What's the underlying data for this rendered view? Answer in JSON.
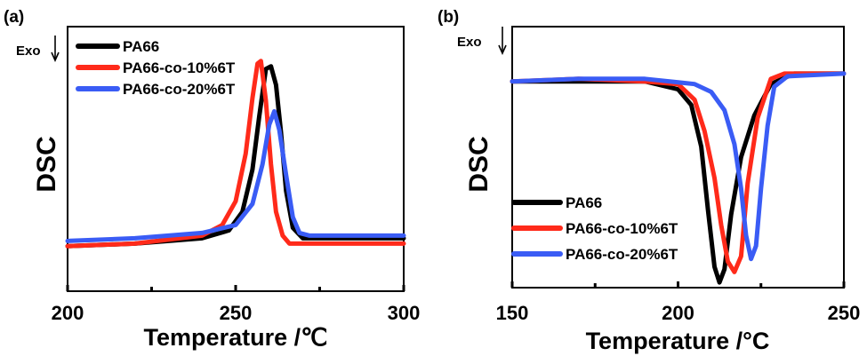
{
  "chart_data": [
    {
      "type": "line",
      "panel": "(a)",
      "xlabel": "Temperature /℃",
      "ylabel": "DSC",
      "annotation": "Exo",
      "xlim": [
        200,
        300
      ],
      "x_ticks": [
        200,
        250,
        300
      ],
      "x_minor_ticks": [
        225,
        275
      ],
      "ylim": [
        0,
        1
      ],
      "y_ticks_shown": false,
      "legend_position": "top-left",
      "series": [
        {
          "name": "PA66",
          "color": "#000000",
          "x": [
            200,
            220,
            240,
            248,
            252,
            255,
            257,
            259,
            260.5,
            262,
            263.5,
            265,
            267,
            270,
            275,
            300
          ],
          "y": [
            0.17,
            0.18,
            0.2,
            0.23,
            0.3,
            0.46,
            0.66,
            0.84,
            0.85,
            0.78,
            0.6,
            0.38,
            0.24,
            0.2,
            0.2,
            0.2
          ]
        },
        {
          "name": "PA66-co-10%6T",
          "color": "#ff2a1a",
          "x": [
            200,
            220,
            240,
            246,
            250,
            253,
            255,
            256.5,
            257.5,
            259,
            260.5,
            262,
            264,
            266,
            270,
            300
          ],
          "y": [
            0.17,
            0.18,
            0.21,
            0.25,
            0.34,
            0.52,
            0.73,
            0.86,
            0.87,
            0.72,
            0.48,
            0.3,
            0.21,
            0.18,
            0.18,
            0.18
          ]
        },
        {
          "name": "PA66-co-20%6T",
          "color": "#3a5cf5",
          "x": [
            200,
            220,
            240,
            250,
            255,
            258,
            260,
            261.5,
            263,
            265,
            267,
            269,
            272,
            280,
            300
          ],
          "y": [
            0.19,
            0.2,
            0.22,
            0.25,
            0.33,
            0.48,
            0.63,
            0.68,
            0.61,
            0.44,
            0.28,
            0.22,
            0.21,
            0.21,
            0.21
          ]
        }
      ]
    },
    {
      "type": "line",
      "panel": "(b)",
      "xlabel": "Temperature /°C",
      "ylabel": "DSC",
      "annotation": "Exo",
      "xlim": [
        150,
        250
      ],
      "x_ticks": [
        150,
        200,
        250
      ],
      "x_minor_ticks": [
        175,
        225
      ],
      "ylim": [
        0,
        1
      ],
      "y_ticks_shown": false,
      "legend_position": "bottom-left",
      "series": [
        {
          "name": "PA66",
          "color": "#000000",
          "x": [
            150,
            170,
            190,
            200,
            204,
            207,
            209,
            211,
            212.5,
            214,
            216,
            219,
            223,
            228,
            235,
            250
          ],
          "y": [
            0.79,
            0.79,
            0.79,
            0.76,
            0.7,
            0.54,
            0.3,
            0.08,
            0.02,
            0.07,
            0.28,
            0.5,
            0.66,
            0.78,
            0.82,
            0.82
          ]
        },
        {
          "name": "PA66-co-10%6T",
          "color": "#ff2a1a",
          "x": [
            150,
            170,
            190,
            200,
            205,
            208,
            211,
            213,
            215,
            217,
            219,
            221,
            224,
            228,
            232,
            250
          ],
          "y": [
            0.79,
            0.8,
            0.79,
            0.78,
            0.72,
            0.6,
            0.42,
            0.24,
            0.1,
            0.06,
            0.12,
            0.4,
            0.65,
            0.8,
            0.82,
            0.82
          ]
        },
        {
          "name": "PA66-co-20%6T",
          "color": "#3a5cf5",
          "x": [
            150,
            170,
            190,
            205,
            210,
            214,
            217,
            219,
            220.5,
            222,
            223.5,
            225,
            227,
            229,
            233,
            250
          ],
          "y": [
            0.79,
            0.8,
            0.8,
            0.78,
            0.75,
            0.68,
            0.55,
            0.38,
            0.2,
            0.11,
            0.16,
            0.38,
            0.62,
            0.77,
            0.81,
            0.82
          ]
        }
      ]
    }
  ]
}
